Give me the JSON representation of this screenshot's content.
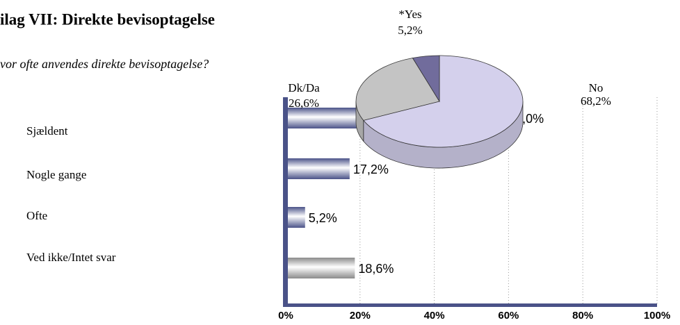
{
  "chart_data": [
    {
      "type": "bar",
      "title": "ilag VII: Direkte bevisoptagelse",
      "subtitle": "vor ofte anvendes direkte bevisoptagelse?",
      "categories": [
        "Sjældent",
        "Nogle gange",
        "Ofte",
        "Ved ikke/Intet svar"
      ],
      "values": [
        59.0,
        17.2,
        5.2,
        18.6
      ],
      "value_labels": [
        "59,0%",
        "17,2%",
        "5,2%",
        "18,6%"
      ],
      "colors": [
        "#4a5288",
        "#4a5288",
        "#4a5288",
        "#8a8a8a"
      ],
      "xlim": [
        0,
        100
      ],
      "xticks": [
        {
          "value": 0,
          "label": "0%"
        },
        {
          "value": 20,
          "label": "20%"
        },
        {
          "value": 40,
          "label": "40%"
        },
        {
          "value": 60,
          "label": "60%"
        },
        {
          "value": 80,
          "label": "80%"
        },
        {
          "value": 100,
          "label": "100%"
        }
      ],
      "grid": true
    },
    {
      "type": "pie",
      "labels": [
        "No",
        "Dk/Da",
        "*Yes"
      ],
      "values": [
        68.2,
        26.6,
        5.2
      ],
      "value_labels": [
        "68,2%",
        "26,6%",
        "5,2%"
      ],
      "colors": [
        "#d4d0ec",
        "#c4c4c4",
        "#716c9c"
      ]
    }
  ]
}
